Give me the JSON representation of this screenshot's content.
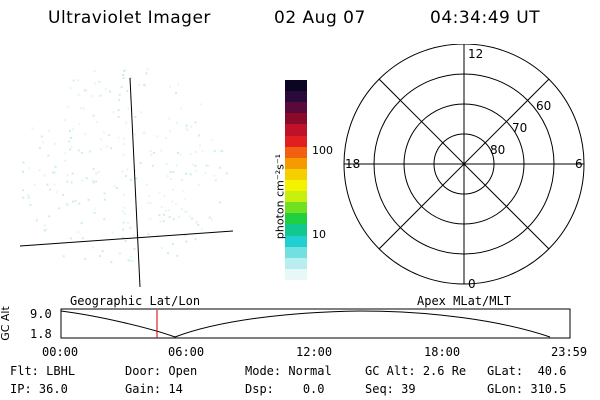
{
  "header": {
    "title": "Ultraviolet Imager",
    "date": "02 Aug 07",
    "time": "04:34:49 UT"
  },
  "colorbar": {
    "unit_label": "photon cm⁻²s⁻¹",
    "ticks": [
      "100",
      "10"
    ],
    "colors": [
      "#0a0520",
      "#2a0a3a",
      "#5a0a3a",
      "#8a0a2a",
      "#c0102a",
      "#e02020",
      "#f06010",
      "#f59a00",
      "#f5cf00",
      "#f5f200",
      "#c8ef10",
      "#70e020",
      "#20d040",
      "#10c890",
      "#20d0d0",
      "#70e0e0",
      "#b8eef0",
      "#e8f8f8"
    ]
  },
  "polar": {
    "mlt_labels": {
      "top": "12",
      "left": "18",
      "right": "6",
      "bottom": "0"
    },
    "lat_labels": [
      "60",
      "70",
      "80"
    ]
  },
  "map_labels": {
    "left": "Geographic Lat/Lon",
    "right": "Apex MLat/MLT"
  },
  "alt_plot": {
    "axis_label": "GC Alt",
    "y_ticks": [
      "9.0",
      "1.8"
    ],
    "x_ticks": [
      "00:00",
      "06:00",
      "12:00",
      "18:00",
      "23:59"
    ],
    "current_time_color": "#cc0000"
  },
  "info": {
    "row1": [
      {
        "k": "Flt:",
        "v": "LBHL"
      },
      {
        "k": "Door:",
        "v": "Open"
      },
      {
        "k": "Mode:",
        "v": "Normal"
      },
      {
        "k": "GC Alt:",
        "v": "2.6 Re"
      },
      {
        "k": "GLat:",
        "v": "40.6"
      }
    ],
    "row2": [
      {
        "k": "IP:",
        "v": "36.0"
      },
      {
        "k": "Gain:",
        "v": "14"
      },
      {
        "k": "Dsp:",
        "v": "0.0"
      },
      {
        "k": "Seq:",
        "v": "39"
      },
      {
        "k": "GLon:",
        "v": "310.5"
      }
    ]
  }
}
